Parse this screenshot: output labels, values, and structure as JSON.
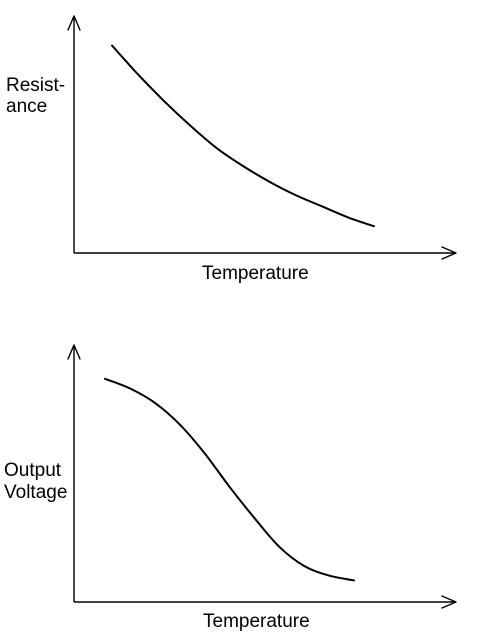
{
  "chart_data": [
    {
      "type": "line",
      "xlabel": "Temperature",
      "ylabel_lines": [
        "Resist-",
        "ance"
      ],
      "x": [
        0.0,
        0.1,
        0.2,
        0.3,
        0.4,
        0.5,
        0.6,
        0.7,
        0.8,
        0.9,
        1.0
      ],
      "series": [
        {
          "values": [
            0.93,
            0.8,
            0.68,
            0.57,
            0.47,
            0.39,
            0.32,
            0.26,
            0.21,
            0.16,
            0.12
          ]
        }
      ],
      "xlim": [
        0,
        1
      ],
      "ylim": [
        0,
        1
      ],
      "axis_ticks": false,
      "grid": false,
      "colors": {
        "line": "#000000",
        "axis": "#000000"
      }
    },
    {
      "type": "line",
      "xlabel": "Temperature",
      "ylabel_lines": [
        "Output",
        "Voltage"
      ],
      "x": [
        0.0,
        0.1,
        0.2,
        0.3,
        0.4,
        0.5,
        0.6,
        0.7,
        0.8,
        0.9,
        1.0
      ],
      "series": [
        {
          "values": [
            0.93,
            0.89,
            0.83,
            0.74,
            0.62,
            0.48,
            0.35,
            0.23,
            0.15,
            0.11,
            0.09
          ]
        }
      ],
      "xlim": [
        0,
        1
      ],
      "ylim": [
        0,
        1
      ],
      "axis_ticks": false,
      "grid": false,
      "colors": {
        "line": "#000000",
        "axis": "#000000"
      }
    }
  ]
}
